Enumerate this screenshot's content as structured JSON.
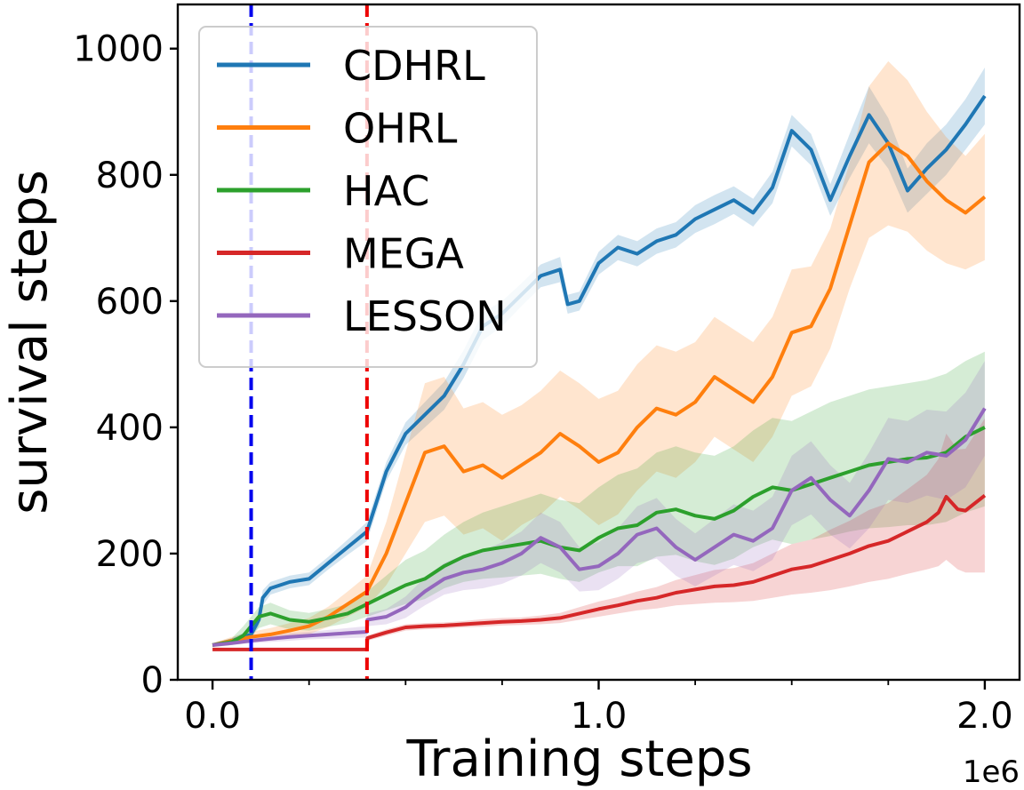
{
  "chart_data": {
    "type": "line",
    "xlabel": "Training  steps",
    "ylabel": "survival steps",
    "x_offset_label": "1e6",
    "xlim": [
      -0.09,
      2.09
    ],
    "ylim": [
      0,
      1070
    ],
    "x_ticks_major": [
      0.0,
      1.0,
      2.0
    ],
    "x_tick_labels": [
      "0.0",
      "1.0",
      "2.0"
    ],
    "x_ticks_minor": [
      0.25,
      0.5,
      0.75,
      1.25,
      1.5,
      1.75
    ],
    "y_ticks": [
      0,
      200,
      400,
      600,
      800,
      1000
    ],
    "y_tick_labels": [
      "0",
      "200",
      "400",
      "600",
      "800",
      "1000"
    ],
    "grid": false,
    "legend_position": "top-left",
    "vlines": [
      {
        "x": 0.1,
        "color": "#0000ee",
        "style": "dashed"
      },
      {
        "x": 0.4,
        "color": "#ee0000",
        "style": "dashed"
      }
    ],
    "series": [
      {
        "name": "CDHRL",
        "color": "#1f77b4",
        "x": [
          0.0,
          0.05,
          0.1,
          0.12,
          0.13,
          0.15,
          0.2,
          0.25,
          0.3,
          0.35,
          0.4,
          0.45,
          0.5,
          0.55,
          0.6,
          0.65,
          0.7,
          0.75,
          0.8,
          0.85,
          0.9,
          0.92,
          0.95,
          1.0,
          1.05,
          1.1,
          1.15,
          1.2,
          1.25,
          1.3,
          1.35,
          1.4,
          1.45,
          1.5,
          1.55,
          1.6,
          1.65,
          1.7,
          1.75,
          1.8,
          1.85,
          1.9,
          1.95,
          2.0
        ],
        "y": [
          55,
          62,
          72,
          95,
          130,
          145,
          155,
          160,
          185,
          210,
          235,
          330,
          390,
          420,
          450,
          500,
          560,
          580,
          610,
          640,
          650,
          595,
          600,
          660,
          685,
          675,
          695,
          705,
          730,
          745,
          760,
          740,
          780,
          870,
          840,
          760,
          830,
          895,
          850,
          775,
          810,
          840,
          880,
          925
        ],
        "lower": [
          53,
          58,
          65,
          85,
          118,
          135,
          145,
          150,
          175,
          198,
          220,
          315,
          372,
          400,
          428,
          478,
          538,
          560,
          592,
          622,
          630,
          580,
          585,
          642,
          665,
          655,
          675,
          685,
          708,
          722,
          738,
          718,
          755,
          845,
          815,
          735,
          795,
          850,
          810,
          740,
          770,
          800,
          840,
          880
        ],
        "upper": [
          57,
          66,
          80,
          105,
          142,
          155,
          165,
          170,
          195,
          222,
          250,
          345,
          408,
          440,
          472,
          522,
          582,
          600,
          628,
          658,
          670,
          610,
          615,
          678,
          705,
          695,
          715,
          725,
          752,
          768,
          782,
          762,
          805,
          895,
          865,
          785,
          865,
          940,
          890,
          810,
          850,
          880,
          920,
          970
        ]
      },
      {
        "name": "OHRL",
        "color": "#ff7f0e",
        "x": [
          0.0,
          0.05,
          0.1,
          0.15,
          0.2,
          0.25,
          0.3,
          0.35,
          0.4,
          0.45,
          0.5,
          0.55,
          0.6,
          0.65,
          0.7,
          0.75,
          0.8,
          0.85,
          0.9,
          0.95,
          1.0,
          1.05,
          1.1,
          1.15,
          1.2,
          1.25,
          1.3,
          1.35,
          1.4,
          1.45,
          1.5,
          1.55,
          1.6,
          1.65,
          1.7,
          1.75,
          1.8,
          1.85,
          1.9,
          1.95,
          2.0
        ],
        "y": [
          55,
          62,
          68,
          72,
          78,
          85,
          100,
          120,
          140,
          200,
          280,
          360,
          370,
          330,
          340,
          320,
          340,
          360,
          390,
          370,
          345,
          360,
          400,
          430,
          420,
          440,
          480,
          460,
          440,
          480,
          550,
          560,
          620,
          720,
          820,
          850,
          830,
          790,
          760,
          740,
          765
        ],
        "lower": [
          52,
          56,
          60,
          62,
          66,
          72,
          84,
          100,
          115,
          150,
          200,
          250,
          260,
          230,
          240,
          220,
          245,
          262,
          290,
          270,
          245,
          262,
          300,
          330,
          320,
          345,
          385,
          365,
          345,
          385,
          450,
          465,
          525,
          620,
          700,
          720,
          710,
          680,
          660,
          650,
          665
        ],
        "upper": [
          58,
          68,
          76,
          82,
          90,
          98,
          116,
          140,
          165,
          250,
          360,
          470,
          480,
          430,
          440,
          420,
          435,
          458,
          490,
          470,
          445,
          458,
          500,
          530,
          520,
          535,
          575,
          555,
          535,
          575,
          650,
          655,
          715,
          820,
          940,
          980,
          950,
          900,
          860,
          830,
          865
        ]
      },
      {
        "name": "HAC",
        "color": "#2ca02c",
        "x": [
          0.0,
          0.05,
          0.08,
          0.1,
          0.12,
          0.15,
          0.2,
          0.25,
          0.3,
          0.35,
          0.4,
          0.45,
          0.5,
          0.55,
          0.6,
          0.65,
          0.7,
          0.75,
          0.8,
          0.85,
          0.9,
          0.95,
          1.0,
          1.05,
          1.1,
          1.15,
          1.2,
          1.25,
          1.3,
          1.35,
          1.4,
          1.45,
          1.5,
          1.55,
          1.6,
          1.65,
          1.7,
          1.75,
          1.8,
          1.85,
          1.9,
          1.95,
          2.0
        ],
        "y": [
          55,
          60,
          70,
          85,
          100,
          105,
          95,
          92,
          98,
          105,
          120,
          135,
          150,
          160,
          180,
          195,
          205,
          210,
          215,
          220,
          210,
          205,
          225,
          240,
          245,
          265,
          270,
          260,
          255,
          268,
          290,
          305,
          300,
          310,
          320,
          330,
          340,
          345,
          350,
          352,
          360,
          385,
          400
        ],
        "lower": [
          52,
          55,
          60,
          70,
          82,
          88,
          80,
          78,
          84,
          90,
          100,
          110,
          120,
          128,
          145,
          155,
          160,
          162,
          165,
          168,
          160,
          155,
          170,
          180,
          180,
          195,
          198,
          188,
          182,
          192,
          210,
          222,
          215,
          222,
          228,
          235,
          240,
          242,
          245,
          245,
          250,
          265,
          275
        ],
        "upper": [
          58,
          66,
          85,
          100,
          115,
          122,
          110,
          106,
          112,
          120,
          140,
          165,
          190,
          205,
          230,
          250,
          265,
          275,
          285,
          295,
          285,
          280,
          305,
          325,
          335,
          360,
          370,
          360,
          355,
          370,
          395,
          415,
          410,
          425,
          440,
          450,
          460,
          465,
          470,
          475,
          485,
          505,
          520
        ]
      },
      {
        "name": "MEGA",
        "color": "#d62728",
        "x": [
          0.0,
          0.05,
          0.1,
          0.2,
          0.3,
          0.4,
          0.401,
          0.45,
          0.5,
          0.55,
          0.6,
          0.65,
          0.7,
          0.75,
          0.8,
          0.85,
          0.9,
          0.95,
          1.0,
          1.05,
          1.1,
          1.15,
          1.2,
          1.25,
          1.3,
          1.35,
          1.4,
          1.45,
          1.5,
          1.55,
          1.6,
          1.65,
          1.7,
          1.75,
          1.8,
          1.85,
          1.88,
          1.9,
          1.93,
          1.95,
          2.0
        ],
        "y": [
          48,
          48,
          48,
          48,
          48,
          48,
          66,
          75,
          83,
          85,
          86,
          88,
          90,
          92,
          93,
          95,
          98,
          105,
          112,
          118,
          125,
          130,
          138,
          143,
          148,
          150,
          155,
          165,
          175,
          180,
          190,
          200,
          212,
          220,
          235,
          250,
          265,
          290,
          270,
          268,
          292
        ],
        "lower": [
          48,
          48,
          48,
          48,
          48,
          48,
          62,
          70,
          78,
          80,
          81,
          83,
          84,
          86,
          87,
          88,
          90,
          95,
          100,
          105,
          110,
          113,
          118,
          120,
          122,
          123,
          125,
          130,
          135,
          138,
          142,
          148,
          155,
          160,
          168,
          175,
          180,
          190,
          175,
          170,
          170
        ],
        "upper": [
          48,
          48,
          48,
          48,
          48,
          48,
          70,
          80,
          88,
          90,
          91,
          93,
          96,
          98,
          99,
          102,
          106,
          115,
          124,
          131,
          140,
          147,
          158,
          166,
          174,
          177,
          185,
          200,
          215,
          222,
          238,
          252,
          269,
          280,
          302,
          325,
          350,
          390,
          365,
          366,
          414
        ]
      },
      {
        "name": "LESSON",
        "color": "#9467bd",
        "x": [
          0.0,
          0.05,
          0.1,
          0.15,
          0.2,
          0.25,
          0.3,
          0.35,
          0.4,
          0.401,
          0.45,
          0.5,
          0.55,
          0.6,
          0.65,
          0.7,
          0.75,
          0.8,
          0.85,
          0.9,
          0.95,
          1.0,
          1.05,
          1.1,
          1.15,
          1.2,
          1.25,
          1.3,
          1.35,
          1.4,
          1.45,
          1.5,
          1.55,
          1.6,
          1.65,
          1.7,
          1.75,
          1.8,
          1.85,
          1.9,
          1.95,
          1.98,
          2.0
        ],
        "y": [
          55,
          58,
          62,
          65,
          68,
          70,
          72,
          74,
          76,
          95,
          100,
          115,
          140,
          160,
          170,
          175,
          185,
          200,
          225,
          210,
          175,
          180,
          200,
          230,
          240,
          210,
          190,
          210,
          230,
          220,
          240,
          300,
          320,
          285,
          260,
          300,
          350,
          345,
          360,
          355,
          380,
          410,
          430
        ],
        "lower": [
          52,
          55,
          58,
          60,
          62,
          64,
          65,
          66,
          67,
          85,
          88,
          98,
          118,
          135,
          142,
          145,
          152,
          165,
          185,
          170,
          140,
          142,
          160,
          185,
          192,
          165,
          148,
          165,
          182,
          172,
          190,
          245,
          262,
          230,
          208,
          240,
          285,
          280,
          292,
          285,
          305,
          335,
          355
        ],
        "upper": [
          58,
          61,
          66,
          70,
          74,
          76,
          79,
          82,
          85,
          105,
          112,
          132,
          162,
          185,
          198,
          205,
          218,
          235,
          265,
          250,
          210,
          218,
          240,
          275,
          288,
          255,
          232,
          255,
          278,
          268,
          290,
          355,
          378,
          340,
          312,
          360,
          415,
          410,
          428,
          425,
          455,
          485,
          505
        ]
      }
    ]
  }
}
